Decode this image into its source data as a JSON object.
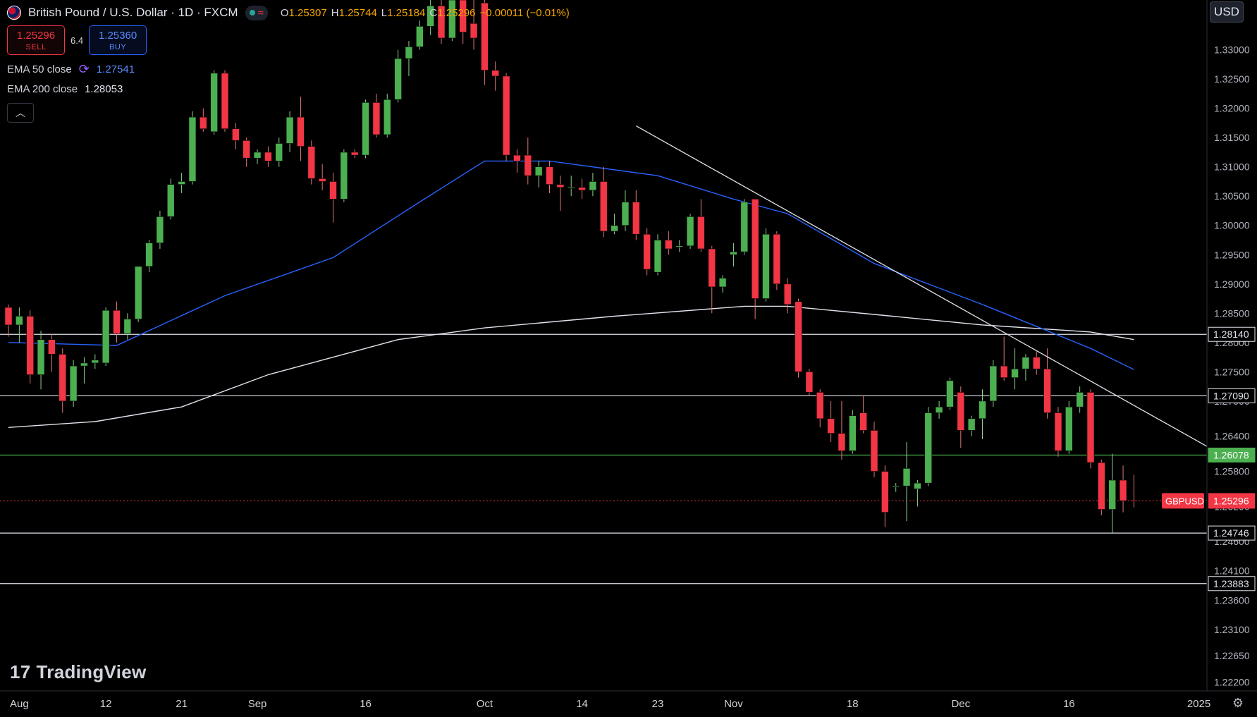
{
  "header": {
    "title": "British Pound / U.S. Dollar · 1D · FXCM",
    "ohlc": [
      {
        "k": "O",
        "v": "1.25307"
      },
      {
        "k": "H",
        "v": "1.25744"
      },
      {
        "k": "L",
        "v": "1.25184"
      },
      {
        "k": "C",
        "v": "1.25296"
      }
    ],
    "change": "−0.00011 (−0.01%)"
  },
  "trade": {
    "sell_price": "1.25296",
    "sell_label": "SELL",
    "spread": "6.4",
    "buy_price": "1.25360",
    "buy_label": "BUY"
  },
  "indicators": {
    "ema50_label": "EMA 50 close",
    "ema50_value": "1.27541",
    "ema200_label": "EMA 200 close",
    "ema200_value": "1.28053"
  },
  "currency": "USD",
  "logo_text": "TradingView",
  "colors": {
    "up": "#26a69a",
    "up_fill": "#4caf50",
    "down": "#f23645",
    "ema50": "#2962ff",
    "ema200": "#e0e3eb",
    "support": "#e0e3eb",
    "green_level": "#4caf50"
  },
  "chart_data": {
    "type": "candlestick",
    "symbol": "GBPUSD",
    "last_price": 1.25296,
    "ylim": [
      1.2205,
      1.3385
    ],
    "y_ticks": [
      "1.33000",
      "1.32500",
      "1.32000",
      "1.31500",
      "1.31000",
      "1.30500",
      "1.30000",
      "1.29500",
      "1.29000",
      "1.28500",
      "1.28000",
      "1.27500",
      "1.27000",
      "1.26400",
      "1.25800",
      "1.25200",
      "1.24600",
      "1.24100",
      "1.23600",
      "1.23100",
      "1.22650",
      "1.22200"
    ],
    "x_ticks": [
      {
        "label": "Aug",
        "i": 1
      },
      {
        "label": "12",
        "i": 9
      },
      {
        "label": "21",
        "i": 16
      },
      {
        "label": "Sep",
        "i": 23
      },
      {
        "label": "16",
        "i": 33
      },
      {
        "label": "Oct",
        "i": 44
      },
      {
        "label": "14",
        "i": 53
      },
      {
        "label": "23",
        "i": 60
      },
      {
        "label": "Nov",
        "i": 67
      },
      {
        "label": "18",
        "i": 78
      },
      {
        "label": "Dec",
        "i": 88
      },
      {
        "label": "16",
        "i": 98
      },
      {
        "label": "2025",
        "i": 110
      }
    ],
    "horizontal_levels": [
      {
        "value": 1.2814,
        "label": "1.28140",
        "style": "white"
      },
      {
        "value": 1.2709,
        "label": "1.27090",
        "style": "white"
      },
      {
        "value": 1.26078,
        "label": "1.26078",
        "style": "green"
      },
      {
        "value": 1.24746,
        "label": "1.24746",
        "style": "white"
      },
      {
        "value": 1.23883,
        "label": "1.23883",
        "style": "white"
      }
    ],
    "trendline": {
      "start": {
        "i": 58,
        "price": 1.317
      },
      "end": {
        "i": 111,
        "price": 1.262
      }
    },
    "ohlc": [
      [
        1.286,
        1.2865,
        1.281,
        1.283
      ],
      [
        1.283,
        1.286,
        1.28,
        1.2845
      ],
      [
        1.2845,
        1.2855,
        1.273,
        1.2745
      ],
      [
        1.2745,
        1.282,
        1.272,
        1.2805
      ],
      [
        1.2805,
        1.2815,
        1.275,
        1.278
      ],
      [
        1.278,
        1.279,
        1.268,
        1.27
      ],
      [
        1.27,
        1.277,
        1.269,
        1.276
      ],
      [
        1.276,
        1.2775,
        1.273,
        1.2765
      ],
      [
        1.2765,
        1.278,
        1.2755,
        1.277
      ],
      [
        1.2765,
        1.286,
        1.276,
        1.2855
      ],
      [
        1.2855,
        1.287,
        1.28,
        1.2815
      ],
      [
        1.2815,
        1.285,
        1.2805,
        1.284
      ],
      [
        1.284,
        1.293,
        1.2835,
        1.293
      ],
      [
        1.293,
        1.2975,
        1.292,
        1.297
      ],
      [
        1.297,
        1.3025,
        1.296,
        1.3015
      ],
      [
        1.3015,
        1.308,
        1.301,
        1.307
      ],
      [
        1.307,
        1.309,
        1.3055,
        1.3075
      ],
      [
        1.3075,
        1.3195,
        1.307,
        1.3185
      ],
      [
        1.3185,
        1.32,
        1.316,
        1.3165
      ],
      [
        1.316,
        1.3265,
        1.3155,
        1.326
      ],
      [
        1.326,
        1.3265,
        1.316,
        1.3165
      ],
      [
        1.3165,
        1.3175,
        1.313,
        1.3145
      ],
      [
        1.3145,
        1.315,
        1.31,
        1.3115
      ],
      [
        1.3115,
        1.313,
        1.3105,
        1.3125
      ],
      [
        1.3125,
        1.3135,
        1.31,
        1.311
      ],
      [
        1.311,
        1.315,
        1.31,
        1.314
      ],
      [
        1.314,
        1.3195,
        1.3125,
        1.3185
      ],
      [
        1.3185,
        1.322,
        1.311,
        1.3135
      ],
      [
        1.3135,
        1.3145,
        1.307,
        1.308
      ],
      [
        1.308,
        1.3105,
        1.306,
        1.3075
      ],
      [
        1.3075,
        1.309,
        1.3005,
        1.3045
      ],
      [
        1.3045,
        1.313,
        1.304,
        1.3125
      ],
      [
        1.3125,
        1.313,
        1.3115,
        1.312
      ],
      [
        1.312,
        1.3215,
        1.3115,
        1.321
      ],
      [
        1.321,
        1.3225,
        1.315,
        1.3155
      ],
      [
        1.3155,
        1.3225,
        1.315,
        1.3215
      ],
      [
        1.3215,
        1.33,
        1.321,
        1.3285
      ],
      [
        1.3285,
        1.3315,
        1.3255,
        1.3305
      ],
      [
        1.3305,
        1.335,
        1.33,
        1.334
      ],
      [
        1.334,
        1.3385,
        1.3325,
        1.3375
      ],
      [
        1.3375,
        1.3385,
        1.331,
        1.332
      ],
      [
        1.332,
        1.3385,
        1.3315,
        1.3385
      ],
      [
        1.3385,
        1.3385,
        1.331,
        1.333
      ],
      [
        1.3345,
        1.3385,
        1.33,
        1.332
      ],
      [
        1.338,
        1.3385,
        1.324,
        1.3265
      ],
      [
        1.3265,
        1.328,
        1.323,
        1.3255
      ],
      [
        1.3255,
        1.326,
        1.311,
        1.312
      ],
      [
        1.312,
        1.313,
        1.309,
        1.311
      ],
      [
        1.312,
        1.315,
        1.307,
        1.3085
      ],
      [
        1.3085,
        1.311,
        1.3065,
        1.31
      ],
      [
        1.31,
        1.311,
        1.3055,
        1.307
      ],
      [
        1.307,
        1.3085,
        1.3025,
        1.3065
      ],
      [
        1.3065,
        1.3085,
        1.305,
        1.3065
      ],
      [
        1.3065,
        1.308,
        1.3045,
        1.306
      ],
      [
        1.306,
        1.309,
        1.305,
        1.3075
      ],
      [
        1.3075,
        1.31,
        1.298,
        1.299
      ],
      [
        1.299,
        1.302,
        1.2985,
        1.3
      ],
      [
        1.3,
        1.306,
        1.299,
        1.304
      ],
      [
        1.304,
        1.306,
        1.2975,
        1.2985
      ],
      [
        1.2985,
        1.2995,
        1.2915,
        1.2925
      ],
      [
        1.292,
        1.2985,
        1.2915,
        1.2975
      ],
      [
        1.2975,
        1.299,
        1.295,
        1.296
      ],
      [
        1.2965,
        1.2975,
        1.2955,
        1.2965
      ],
      [
        1.2965,
        1.302,
        1.296,
        1.3015
      ],
      [
        1.3015,
        1.3045,
        1.2955,
        1.296
      ],
      [
        1.296,
        1.2965,
        1.285,
        1.2895
      ],
      [
        1.2895,
        1.2915,
        1.2885,
        1.291
      ],
      [
        1.295,
        1.297,
        1.293,
        1.2955
      ],
      [
        1.2955,
        1.3045,
        1.295,
        1.304
      ],
      [
        1.3045,
        1.3045,
        1.284,
        1.2875
      ],
      [
        1.2875,
        1.2995,
        1.287,
        1.2985
      ],
      [
        1.2985,
        1.299,
        1.289,
        1.29
      ],
      [
        1.29,
        1.291,
        1.285,
        1.2865
      ],
      [
        1.287,
        1.2875,
        1.274,
        1.275
      ],
      [
        1.275,
        1.2755,
        1.271,
        1.2715
      ],
      [
        1.2715,
        1.272,
        1.2655,
        1.267
      ],
      [
        1.267,
        1.27,
        1.263,
        1.2645
      ],
      [
        1.2645,
        1.27,
        1.26,
        1.2615
      ],
      [
        1.2615,
        1.2685,
        1.261,
        1.2675
      ],
      [
        1.268,
        1.271,
        1.2645,
        1.265
      ],
      [
        1.265,
        1.2665,
        1.257,
        1.258
      ],
      [
        1.258,
        1.259,
        1.2485,
        1.251
      ],
      [
        1.2555,
        1.256,
        1.2545,
        1.2555
      ],
      [
        1.2555,
        1.263,
        1.2495,
        1.2585
      ],
      [
        1.255,
        1.2565,
        1.252,
        1.256
      ],
      [
        1.256,
        1.269,
        1.2555,
        1.268
      ],
      [
        1.268,
        1.27,
        1.267,
        1.269
      ],
      [
        1.269,
        1.274,
        1.2685,
        1.2735
      ],
      [
        1.2715,
        1.2725,
        1.262,
        1.265
      ],
      [
        1.265,
        1.2675,
        1.264,
        1.267
      ],
      [
        1.267,
        1.272,
        1.2635,
        1.27
      ],
      [
        1.27,
        1.277,
        1.269,
        1.276
      ],
      [
        1.276,
        1.281,
        1.2735,
        1.274
      ],
      [
        1.274,
        1.279,
        1.272,
        1.2755
      ],
      [
        1.2755,
        1.278,
        1.2735,
        1.2775
      ],
      [
        1.2775,
        1.2785,
        1.2745,
        1.2755
      ],
      [
        1.2755,
        1.279,
        1.267,
        1.268
      ],
      [
        1.268,
        1.269,
        1.2605,
        1.2615
      ],
      [
        1.2615,
        1.27,
        1.261,
        1.269
      ],
      [
        1.269,
        1.2725,
        1.268,
        1.2715
      ],
      [
        1.2715,
        1.272,
        1.2585,
        1.2595
      ],
      [
        1.2595,
        1.26,
        1.2505,
        1.2515
      ],
      [
        1.2515,
        1.261,
        1.2475,
        1.2565
      ],
      [
        1.2565,
        1.259,
        1.251,
        1.253
      ],
      [
        1.25307,
        1.25744,
        1.25184,
        1.25296
      ]
    ],
    "ema50": [
      [
        0,
        1.28
      ],
      [
        10,
        1.2795
      ],
      [
        20,
        1.288
      ],
      [
        30,
        1.2945
      ],
      [
        38,
        1.304
      ],
      [
        44,
        1.311
      ],
      [
        50,
        1.311
      ],
      [
        60,
        1.3085
      ],
      [
        67,
        1.3045
      ],
      [
        72,
        1.302
      ],
      [
        80,
        1.2935
      ],
      [
        90,
        1.2865
      ],
      [
        96,
        1.282
      ],
      [
        100,
        1.279
      ],
      [
        104,
        1.2754
      ]
    ],
    "ema200": [
      [
        0,
        1.2655
      ],
      [
        8,
        1.2665
      ],
      [
        16,
        1.269
      ],
      [
        24,
        1.2745
      ],
      [
        36,
        1.2805
      ],
      [
        44,
        1.2825
      ],
      [
        56,
        1.2845
      ],
      [
        68,
        1.2862
      ],
      [
        72,
        1.2862
      ],
      [
        80,
        1.2848
      ],
      [
        90,
        1.283
      ],
      [
        100,
        1.2818
      ],
      [
        104,
        1.2805
      ]
    ]
  }
}
